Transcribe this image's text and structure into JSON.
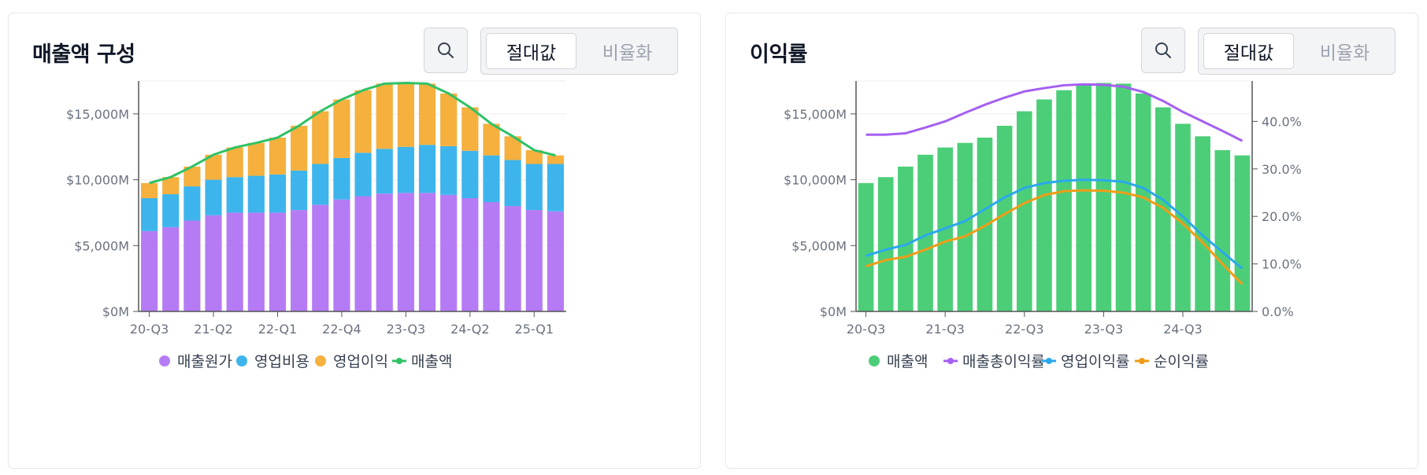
{
  "colors": {
    "cogs": "#b57bf5",
    "opex": "#3db5ec",
    "op_income": "#f5b03e",
    "revenue_line": "#2fc265",
    "revenue_bar": "#4cce78",
    "gross_margin": "#a55ff2",
    "op_margin": "#2aa8ec",
    "net_margin": "#ee9d18",
    "axis": "#555555",
    "grid": "#eeeeee"
  },
  "cards": [
    {
      "title": "매출액 구성",
      "search_icon": "search-icon",
      "toggle": {
        "active": "절대값",
        "inactive": "비율화"
      }
    },
    {
      "title": "이익률",
      "search_icon": "search-icon",
      "toggle": {
        "active": "절대값",
        "inactive": "비율화"
      }
    }
  ],
  "chart_data": [
    {
      "type": "bar",
      "stacked": true,
      "title": "매출액 구성",
      "categories": [
        "20-Q3",
        "20-Q4",
        "21-Q1",
        "21-Q2",
        "21-Q3",
        "21-Q4",
        "22-Q1",
        "22-Q2",
        "22-Q3",
        "22-Q4",
        "23-Q1",
        "23-Q2",
        "23-Q3",
        "23-Q4",
        "24-Q1",
        "24-Q2",
        "24-Q3",
        "24-Q4",
        "25-Q1",
        "25-Q2"
      ],
      "x_tick_labels": [
        "20-Q3",
        "21-Q2",
        "22-Q1",
        "22-Q4",
        "23-Q3",
        "24-Q2",
        "25-Q1"
      ],
      "series": [
        {
          "name": "매출원가",
          "kind": "bar",
          "color_key": "cogs",
          "values": [
            6100,
            6400,
            6900,
            7300,
            7500,
            7500,
            7500,
            7700,
            8100,
            8500,
            8750,
            8950,
            9000,
            9000,
            8850,
            8600,
            8300,
            8000,
            7700,
            7600
          ]
        },
        {
          "name": "영업비용",
          "kind": "bar",
          "color_key": "opex",
          "values": [
            2500,
            2500,
            2600,
            2700,
            2700,
            2800,
            2900,
            3000,
            3100,
            3150,
            3300,
            3400,
            3500,
            3650,
            3700,
            3600,
            3550,
            3500,
            3500,
            3600
          ]
        },
        {
          "name": "영업이익",
          "kind": "bar",
          "color_key": "op_income",
          "values": [
            1150,
            1300,
            1500,
            1900,
            2250,
            2500,
            2800,
            3400,
            4000,
            4450,
            4750,
            4950,
            4850,
            4650,
            4000,
            3300,
            2400,
            1800,
            1050,
            650
          ]
        },
        {
          "name": "매출액",
          "kind": "line",
          "color_key": "revenue_line",
          "values": [
            9750,
            10200,
            11000,
            11900,
            12450,
            12800,
            13200,
            14100,
            15200,
            16100,
            16800,
            17300,
            17350,
            17300,
            16550,
            15500,
            14250,
            13300,
            12250,
            11850
          ]
        }
      ],
      "y_axis": {
        "ticks": [
          "$0M",
          "$5,000M",
          "$10,000M",
          "$15,000M"
        ],
        "tick_values": [
          0,
          5000,
          10000,
          15000
        ],
        "ylim": [
          0,
          17500
        ]
      },
      "legend": [
        {
          "label": "매출원가",
          "marker": "dot",
          "color_key": "cogs"
        },
        {
          "label": "영업비용",
          "marker": "dot",
          "color_key": "opex"
        },
        {
          "label": "영업이익",
          "marker": "dot",
          "color_key": "op_income"
        },
        {
          "label": "매출액",
          "marker": "line",
          "color_key": "revenue_line"
        }
      ],
      "legend_position": "bottom",
      "grid": true
    },
    {
      "type": "bar",
      "title": "이익률",
      "categories": [
        "20-Q3",
        "20-Q4",
        "21-Q1",
        "21-Q2",
        "21-Q3",
        "21-Q4",
        "22-Q1",
        "22-Q2",
        "22-Q3",
        "22-Q4",
        "23-Q1",
        "23-Q2",
        "23-Q3",
        "23-Q4",
        "24-Q1",
        "24-Q2",
        "24-Q3",
        "24-Q4",
        "25-Q1",
        "25-Q2"
      ],
      "x_tick_labels": [
        "20-Q3",
        "21-Q3",
        "22-Q3",
        "23-Q3",
        "24-Q3"
      ],
      "x_tick_positions_index": [
        0,
        4,
        8,
        12,
        16
      ],
      "series": [
        {
          "name": "매출액",
          "kind": "bar",
          "axis": "left",
          "color_key": "revenue_bar",
          "values": [
            9750,
            10200,
            11000,
            11900,
            12450,
            12800,
            13200,
            14100,
            15200,
            16100,
            16800,
            17300,
            17350,
            17300,
            16550,
            15500,
            14250,
            13300,
            12250,
            11850
          ]
        },
        {
          "name": "매출총이익률",
          "kind": "line",
          "axis": "right",
          "color_key": "gross_margin",
          "values": [
            37.2,
            37.2,
            37.5,
            38.7,
            40.0,
            41.8,
            43.5,
            45.0,
            46.3,
            47.0,
            47.6,
            47.8,
            47.7,
            47.3,
            46.2,
            44.3,
            42.0,
            40.0,
            38.0,
            35.9
          ]
        },
        {
          "name": "영업이익률",
          "kind": "line",
          "axis": "right",
          "color_key": "op_margin",
          "values": [
            11.7,
            13.0,
            14.0,
            16.0,
            17.5,
            19.0,
            21.5,
            24.0,
            26.0,
            27.0,
            27.5,
            27.7,
            27.6,
            27.3,
            26.0,
            23.5,
            20.0,
            16.0,
            12.5,
            9.0
          ]
        },
        {
          "name": "순이익률",
          "kind": "line",
          "axis": "right",
          "color_key": "net_margin",
          "values": [
            9.5,
            10.8,
            11.5,
            13.0,
            14.7,
            15.8,
            18.0,
            20.5,
            22.8,
            24.5,
            25.3,
            25.5,
            25.4,
            25.0,
            24.0,
            21.8,
            18.5,
            14.5,
            10.0,
            5.7
          ]
        }
      ],
      "y_axis_left": {
        "ticks": [
          "$0M",
          "$5,000M",
          "$10,000M",
          "$15,000M"
        ],
        "tick_values": [
          0,
          5000,
          10000,
          15000
        ],
        "ylim": [
          0,
          17500
        ]
      },
      "y_axis_right": {
        "ticks": [
          "0.0%",
          "10.0%",
          "20.0%",
          "30.0%",
          "40.0%"
        ],
        "tick_values": [
          0,
          10,
          20,
          30,
          40
        ],
        "ylim": [
          0,
          48.5
        ]
      },
      "legend": [
        {
          "label": "매출액",
          "marker": "dot",
          "color_key": "revenue_bar"
        },
        {
          "label": "매출총이익률",
          "marker": "line",
          "color_key": "gross_margin"
        },
        {
          "label": "영업이익률",
          "marker": "line",
          "color_key": "op_margin"
        },
        {
          "label": "순이익률",
          "marker": "line",
          "color_key": "net_margin"
        }
      ],
      "legend_position": "bottom",
      "grid": true
    }
  ]
}
